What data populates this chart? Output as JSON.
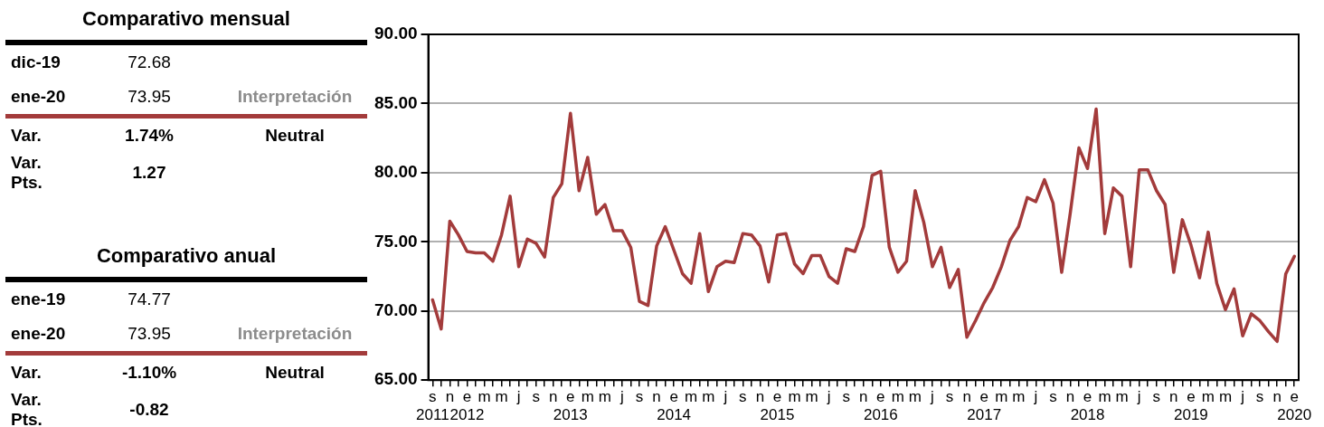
{
  "chart_data": [
    {
      "type": "other",
      "title": "Comparativo mensual",
      "categories": [
        "dic-19",
        "ene-20",
        "Var.",
        "Var. Pts."
      ],
      "cell_labels": [
        [
          "72.68",
          null
        ],
        [
          "73.95",
          "Interpretación"
        ],
        [
          "1.74%",
          "Neutral"
        ],
        [
          "1.27",
          null
        ]
      ]
    },
    {
      "type": "other",
      "title": "Comparativo anual",
      "categories": [
        "ene-19",
        "ene-20",
        "Var.",
        "Var. Pts."
      ],
      "cell_labels": [
        [
          "74.77",
          null
        ],
        [
          "73.95",
          "Interpretación"
        ],
        [
          "-1.10%",
          "Neutral"
        ],
        [
          "-0.82",
          null
        ]
      ]
    },
    {
      "type": "line",
      "categories": [
        "s\n2011",
        null,
        "n",
        null,
        "e\n2012",
        null,
        "m",
        null,
        "m",
        null,
        "j",
        null,
        "s",
        null,
        "n",
        null,
        "e\n2013",
        null,
        "m",
        null,
        "m",
        null,
        "j",
        null,
        "s",
        null,
        "n",
        null,
        "e\n2014",
        null,
        "m",
        null,
        "m",
        null,
        "j",
        null,
        "s",
        null,
        "n",
        null,
        "e\n2015",
        null,
        "m",
        null,
        "m",
        null,
        "j",
        null,
        "s",
        null,
        "n",
        null,
        "e\n2016",
        null,
        "m",
        null,
        "m",
        null,
        "j",
        null,
        "s",
        null,
        "n",
        null,
        "e\n2017",
        null,
        "m",
        null,
        "m",
        null,
        "j",
        null,
        "s",
        null,
        "n",
        null,
        "e\n2018",
        null,
        "m",
        null,
        "m",
        null,
        "j",
        null,
        "s",
        null,
        "n",
        null,
        "e\n2019",
        null,
        "m",
        null,
        "m",
        null,
        "j",
        null,
        "s",
        null,
        "n",
        null,
        "e\n2020"
      ],
      "series": [
        {
          "color": "#a33b3b",
          "values": [
            70.8,
            68.7,
            76.5,
            75.5,
            74.3,
            74.2,
            74.2,
            73.6,
            75.5,
            78.3,
            73.2,
            75.2,
            74.9,
            73.9,
            78.2,
            79.2,
            84.3,
            78.7,
            81.1,
            77.0,
            77.7,
            75.8,
            75.8,
            74.6,
            70.7,
            70.4,
            74.7,
            76.1,
            74.4,
            72.7,
            72.0,
            75.6,
            71.4,
            73.2,
            73.6,
            73.5,
            75.6,
            75.5,
            74.7,
            72.1,
            75.5,
            75.6,
            73.4,
            72.7,
            74.0,
            74.0,
            72.5,
            72.0,
            74.5,
            74.3,
            76.1,
            79.8,
            80.1,
            74.6,
            72.8,
            73.6,
            78.7,
            76.4,
            73.2,
            74.6,
            71.7,
            73.0,
            68.1,
            69.3,
            70.6,
            71.7,
            73.2,
            75.1,
            76.1,
            78.2,
            77.9,
            79.5,
            77.8,
            72.8,
            77.1,
            81.8,
            80.3,
            84.6,
            75.6,
            78.9,
            78.3,
            73.2,
            80.2,
            80.2,
            78.7,
            77.7,
            72.8,
            76.6,
            74.77,
            72.4,
            75.7,
            72.0,
            70.1,
            71.6,
            68.2,
            69.8,
            69.3,
            68.5,
            67.8,
            72.68,
            73.95
          ]
        }
      ],
      "ylim": [
        65,
        90
      ],
      "yticks": [
        {
          "value": 65,
          "label": "65.00"
        },
        {
          "value": 70,
          "label": "70.00"
        },
        {
          "value": 75,
          "label": "75.00"
        },
        {
          "value": 80,
          "label": "80.00"
        },
        {
          "value": 85,
          "label": "85.00"
        },
        {
          "value": 90,
          "label": "90.00"
        }
      ],
      "grid": "y",
      "marker": "none",
      "line_style": "solid"
    }
  ]
}
